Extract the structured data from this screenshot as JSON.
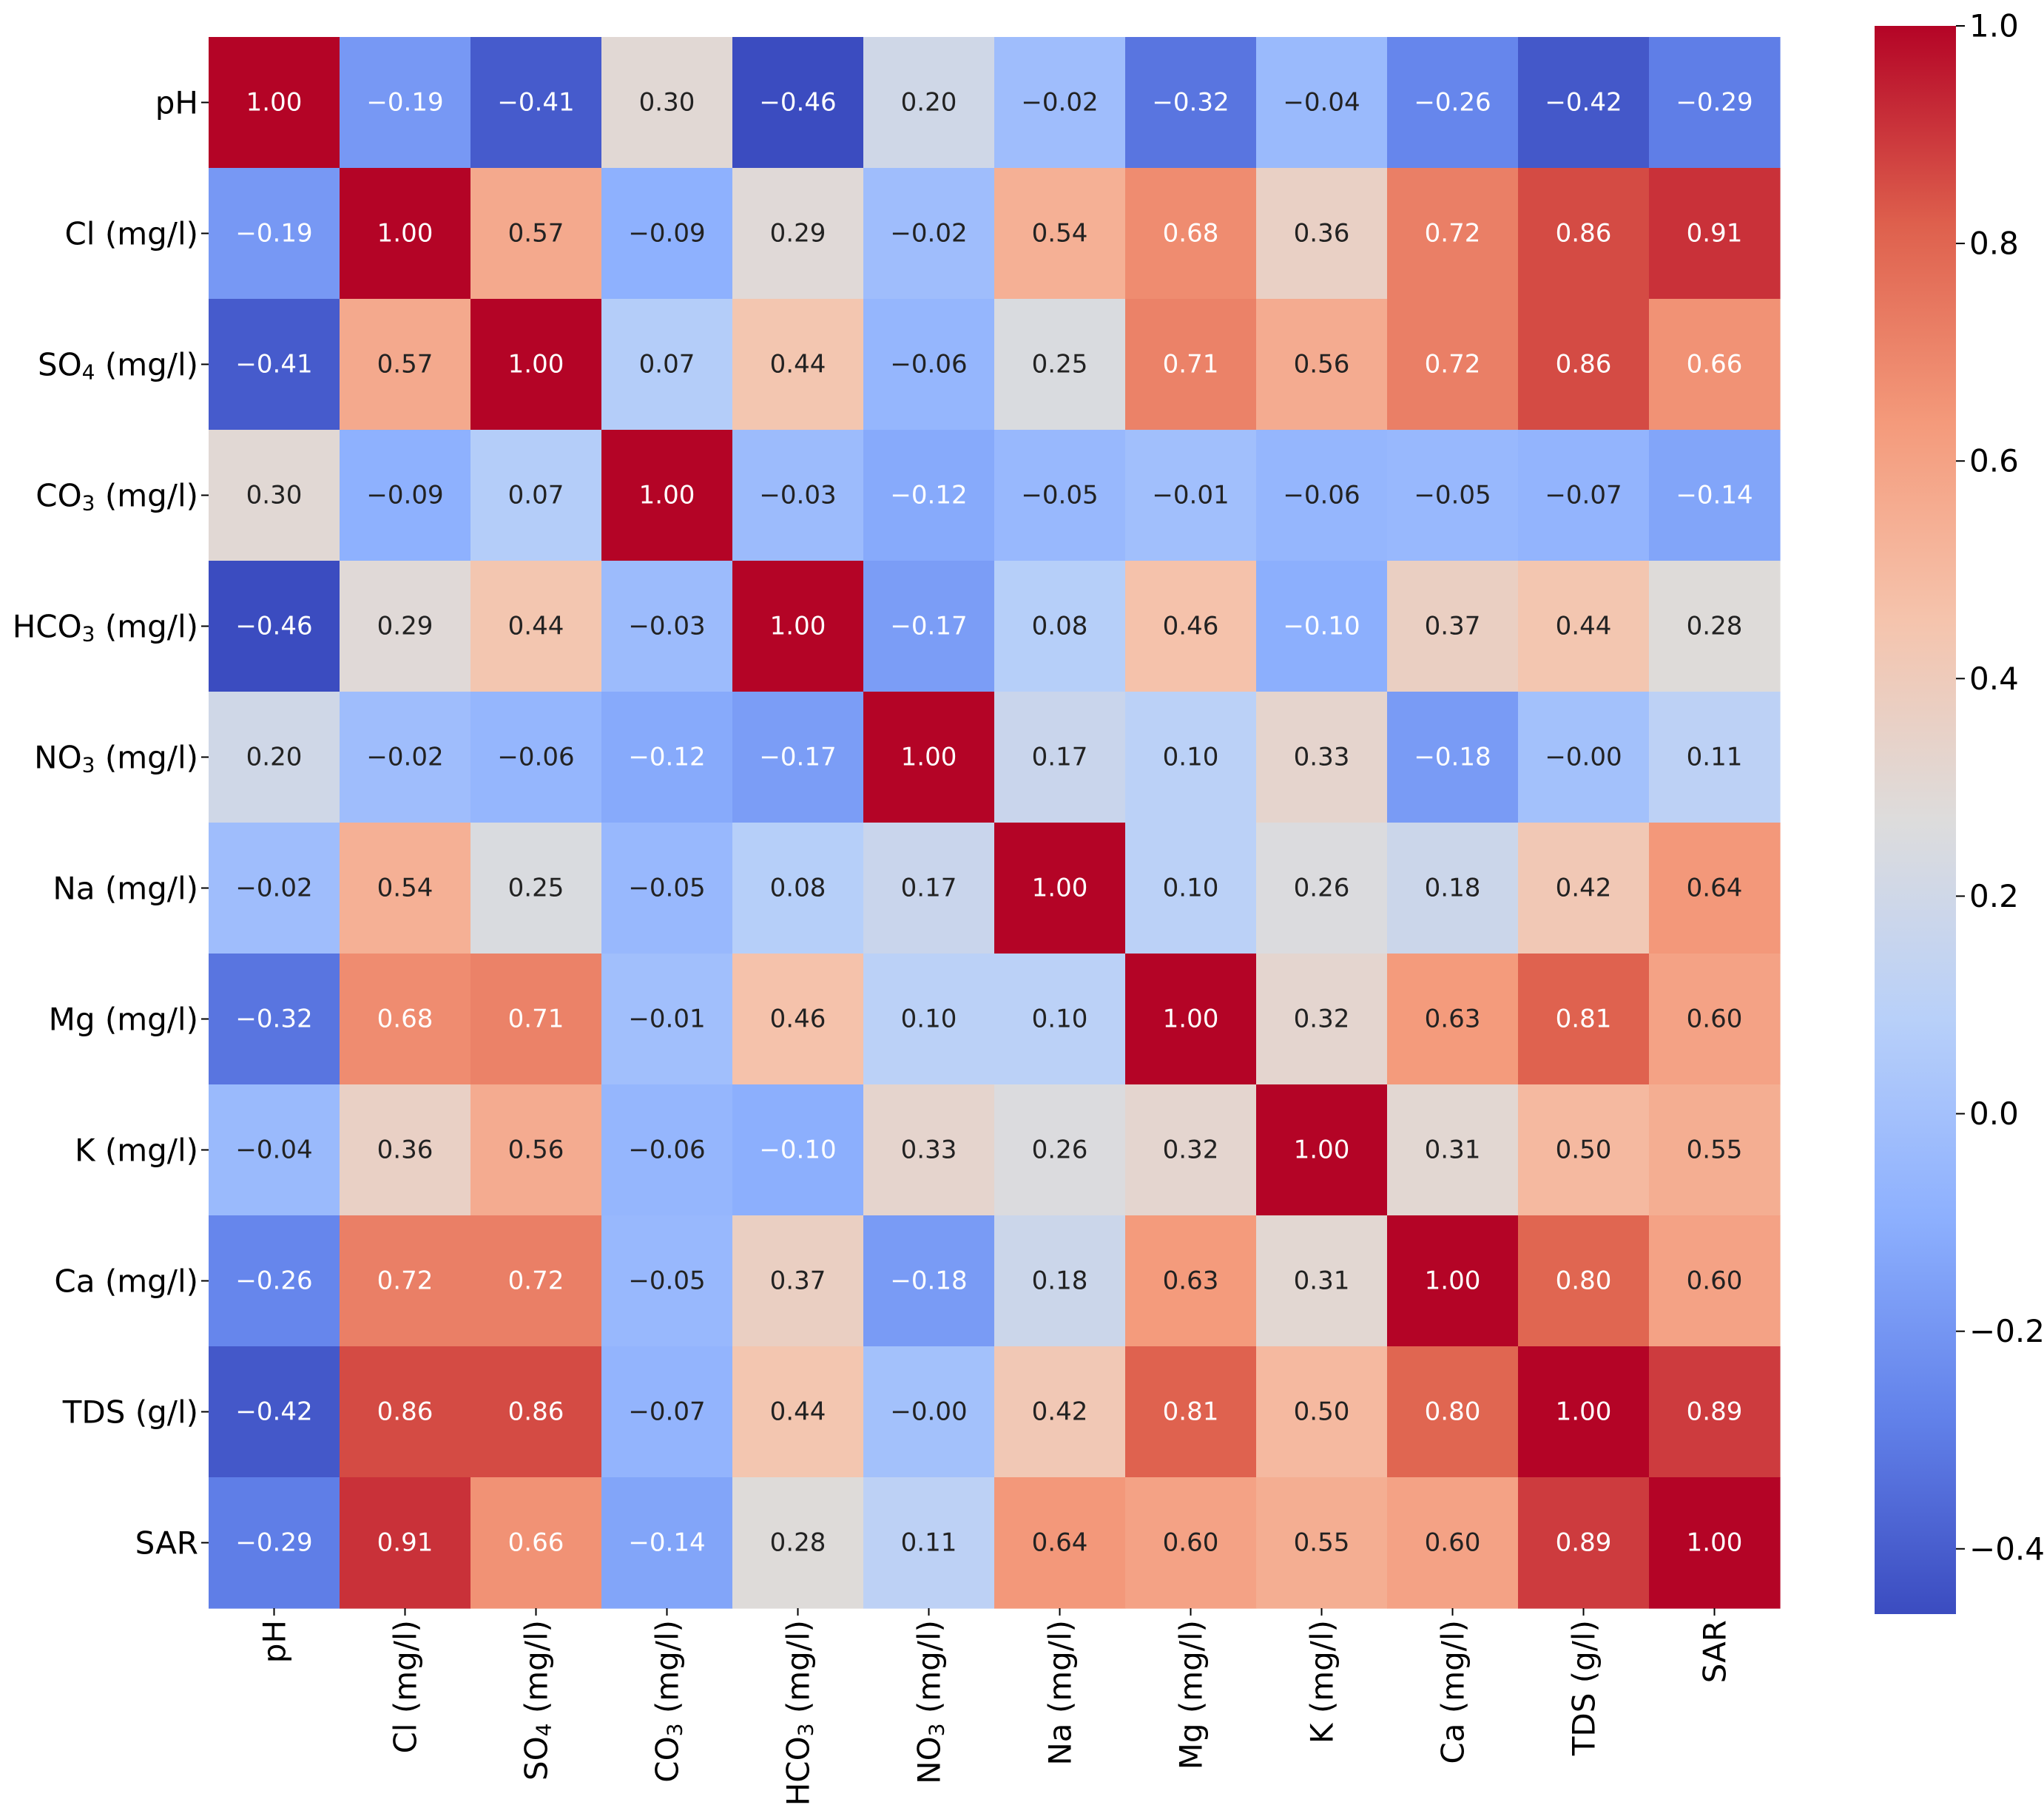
{
  "chart_data": {
    "type": "heatmap",
    "title": "",
    "labels": [
      {
        "main": "pH",
        "sub": "",
        "suffix": ""
      },
      {
        "main": "Cl (mg/l)",
        "sub": "",
        "suffix": ""
      },
      {
        "main": "SO",
        "sub": "4",
        "suffix": " (mg/l)"
      },
      {
        "main": "CO",
        "sub": "3",
        "suffix": " (mg/l)"
      },
      {
        "main": "HCO",
        "sub": "3",
        "suffix": " (mg/l)"
      },
      {
        "main": "NO",
        "sub": "3",
        "suffix": " (mg/l)"
      },
      {
        "main": "Na (mg/l)",
        "sub": "",
        "suffix": ""
      },
      {
        "main": "Mg (mg/l)",
        "sub": "",
        "suffix": ""
      },
      {
        "main": "K (mg/l)",
        "sub": "",
        "suffix": ""
      },
      {
        "main": "Ca (mg/l)",
        "sub": "",
        "suffix": ""
      },
      {
        "main": "TDS (g/l)",
        "sub": "",
        "suffix": ""
      },
      {
        "main": "SAR",
        "sub": "",
        "suffix": ""
      }
    ],
    "values": [
      [
        1.0,
        -0.19,
        -0.41,
        0.3,
        -0.46,
        0.2,
        -0.02,
        -0.32,
        -0.04,
        -0.26,
        -0.42,
        -0.29
      ],
      [
        -0.19,
        1.0,
        0.57,
        -0.09,
        0.29,
        -0.02,
        0.54,
        0.68,
        0.36,
        0.72,
        0.86,
        0.91
      ],
      [
        -0.41,
        0.57,
        1.0,
        0.07,
        0.44,
        -0.06,
        0.25,
        0.71,
        0.56,
        0.72,
        0.86,
        0.66
      ],
      [
        0.3,
        -0.09,
        0.07,
        1.0,
        -0.03,
        -0.12,
        -0.05,
        -0.01,
        -0.06,
        -0.05,
        -0.07,
        -0.14
      ],
      [
        -0.46,
        0.29,
        0.44,
        -0.03,
        1.0,
        -0.17,
        0.08,
        0.46,
        -0.1,
        0.37,
        0.44,
        0.28
      ],
      [
        0.2,
        -0.02,
        -0.06,
        -0.12,
        -0.17,
        1.0,
        0.17,
        0.1,
        0.33,
        -0.18,
        -0.0,
        0.11
      ],
      [
        -0.02,
        0.54,
        0.25,
        -0.05,
        0.08,
        0.17,
        1.0,
        0.1,
        0.26,
        0.18,
        0.42,
        0.64
      ],
      [
        -0.32,
        0.68,
        0.71,
        -0.01,
        0.46,
        0.1,
        0.1,
        1.0,
        0.32,
        0.63,
        0.81,
        0.6
      ],
      [
        -0.04,
        0.36,
        0.56,
        -0.06,
        -0.1,
        0.33,
        0.26,
        0.32,
        1.0,
        0.31,
        0.5,
        0.55
      ],
      [
        -0.26,
        0.72,
        0.72,
        -0.05,
        0.37,
        -0.18,
        0.18,
        0.63,
        0.31,
        1.0,
        0.8,
        0.6
      ],
      [
        -0.42,
        0.86,
        0.86,
        -0.07,
        0.44,
        -0.0,
        0.42,
        0.81,
        0.5,
        0.8,
        1.0,
        0.89
      ],
      [
        -0.29,
        0.91,
        0.66,
        -0.14,
        0.28,
        0.11,
        0.64,
        0.6,
        0.55,
        0.6,
        0.89,
        1.0
      ]
    ],
    "colormap": "coolwarm",
    "vmin": -0.46,
    "vmax": 1.0,
    "colorbar_ticks": [
      1.0,
      0.8,
      0.6,
      0.4,
      0.2,
      0.0,
      -0.2,
      -0.4
    ],
    "colorbar_tick_labels": [
      "1.0",
      "0.8",
      "0.6",
      "0.4",
      "0.2",
      "0.0",
      "−0.2",
      "−0.4"
    ],
    "colorbar_placement": "right",
    "colors": {
      "cold": "#3b4cc0",
      "neutral": "#dddcdc",
      "warm": "#b40426"
    }
  }
}
